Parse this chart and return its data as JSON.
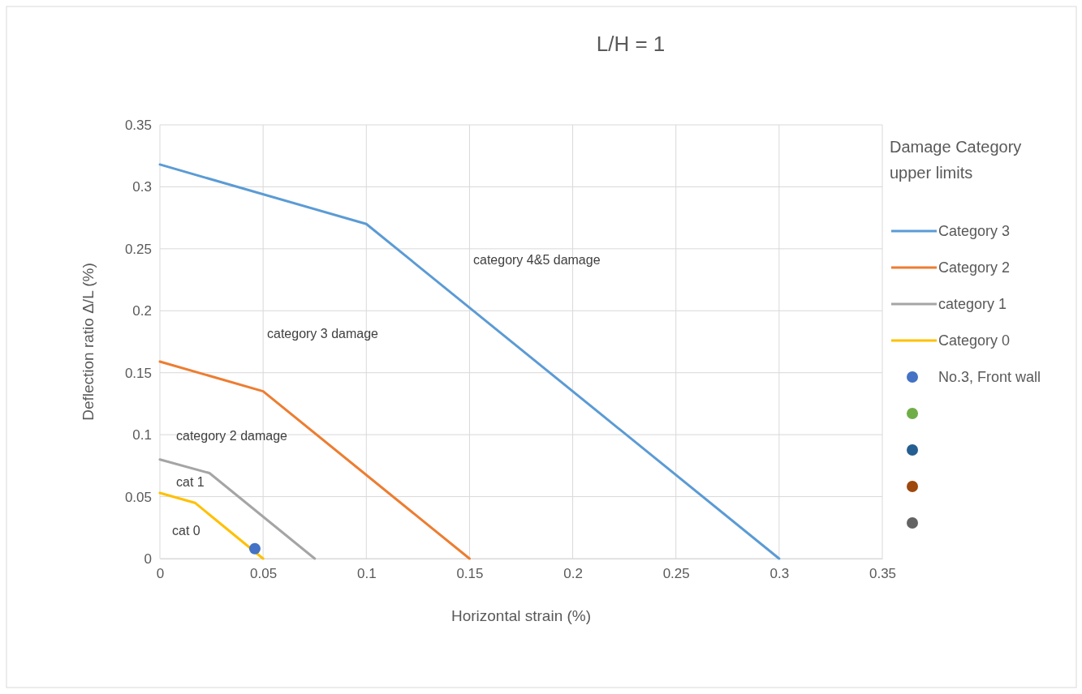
{
  "chart_data": {
    "type": "line",
    "title": "L/H = 1",
    "xlabel": "Horizontal strain (%)",
    "ylabel": "Deflection ratio Δ/L (%)",
    "legend_title": "Damage Category upper limits",
    "xlim": [
      0,
      0.35
    ],
    "ylim": [
      0,
      0.35
    ],
    "xticks": [
      0,
      0.05,
      0.1,
      0.15,
      0.2,
      0.25,
      0.3,
      0.35
    ],
    "yticks": [
      0,
      0.05,
      0.1,
      0.15,
      0.2,
      0.25,
      0.3,
      0.35
    ],
    "grid": true,
    "legend": "right",
    "line_style": "solid",
    "series": [
      {
        "name": "Category 3",
        "color": "#5b9bd5",
        "x": [
          0,
          0.1,
          0.3
        ],
        "values": [
          0.318,
          0.27,
          0
        ]
      },
      {
        "name": "Category 2",
        "color": "#ed7d31",
        "x": [
          0,
          0.05,
          0.15
        ],
        "values": [
          0.159,
          0.135,
          0
        ]
      },
      {
        "name": "category 1",
        "color": "#a5a5a5",
        "x": [
          0,
          0.024,
          0.075
        ],
        "values": [
          0.08,
          0.069,
          0
        ]
      },
      {
        "name": "Category 0",
        "color": "#ffc000",
        "x": [
          0,
          0.017,
          0.05
        ],
        "values": [
          0.053,
          0.045,
          0
        ]
      },
      {
        "name": "No.3, Front wall",
        "type": "scatter",
        "color": "#4472c4",
        "x": [
          0.046
        ],
        "values": [
          0.008
        ]
      },
      {
        "type": "scatter",
        "color": "#70ad47"
      },
      {
        "type": "scatter",
        "color": "#255e91"
      },
      {
        "type": "scatter",
        "color": "#9e480e"
      },
      {
        "type": "scatter",
        "color": "#636363"
      }
    ],
    "annotations": [
      "category 4&5 damage",
      "category 3 damage",
      "category 2 damage",
      "cat 1",
      "cat 0"
    ]
  }
}
